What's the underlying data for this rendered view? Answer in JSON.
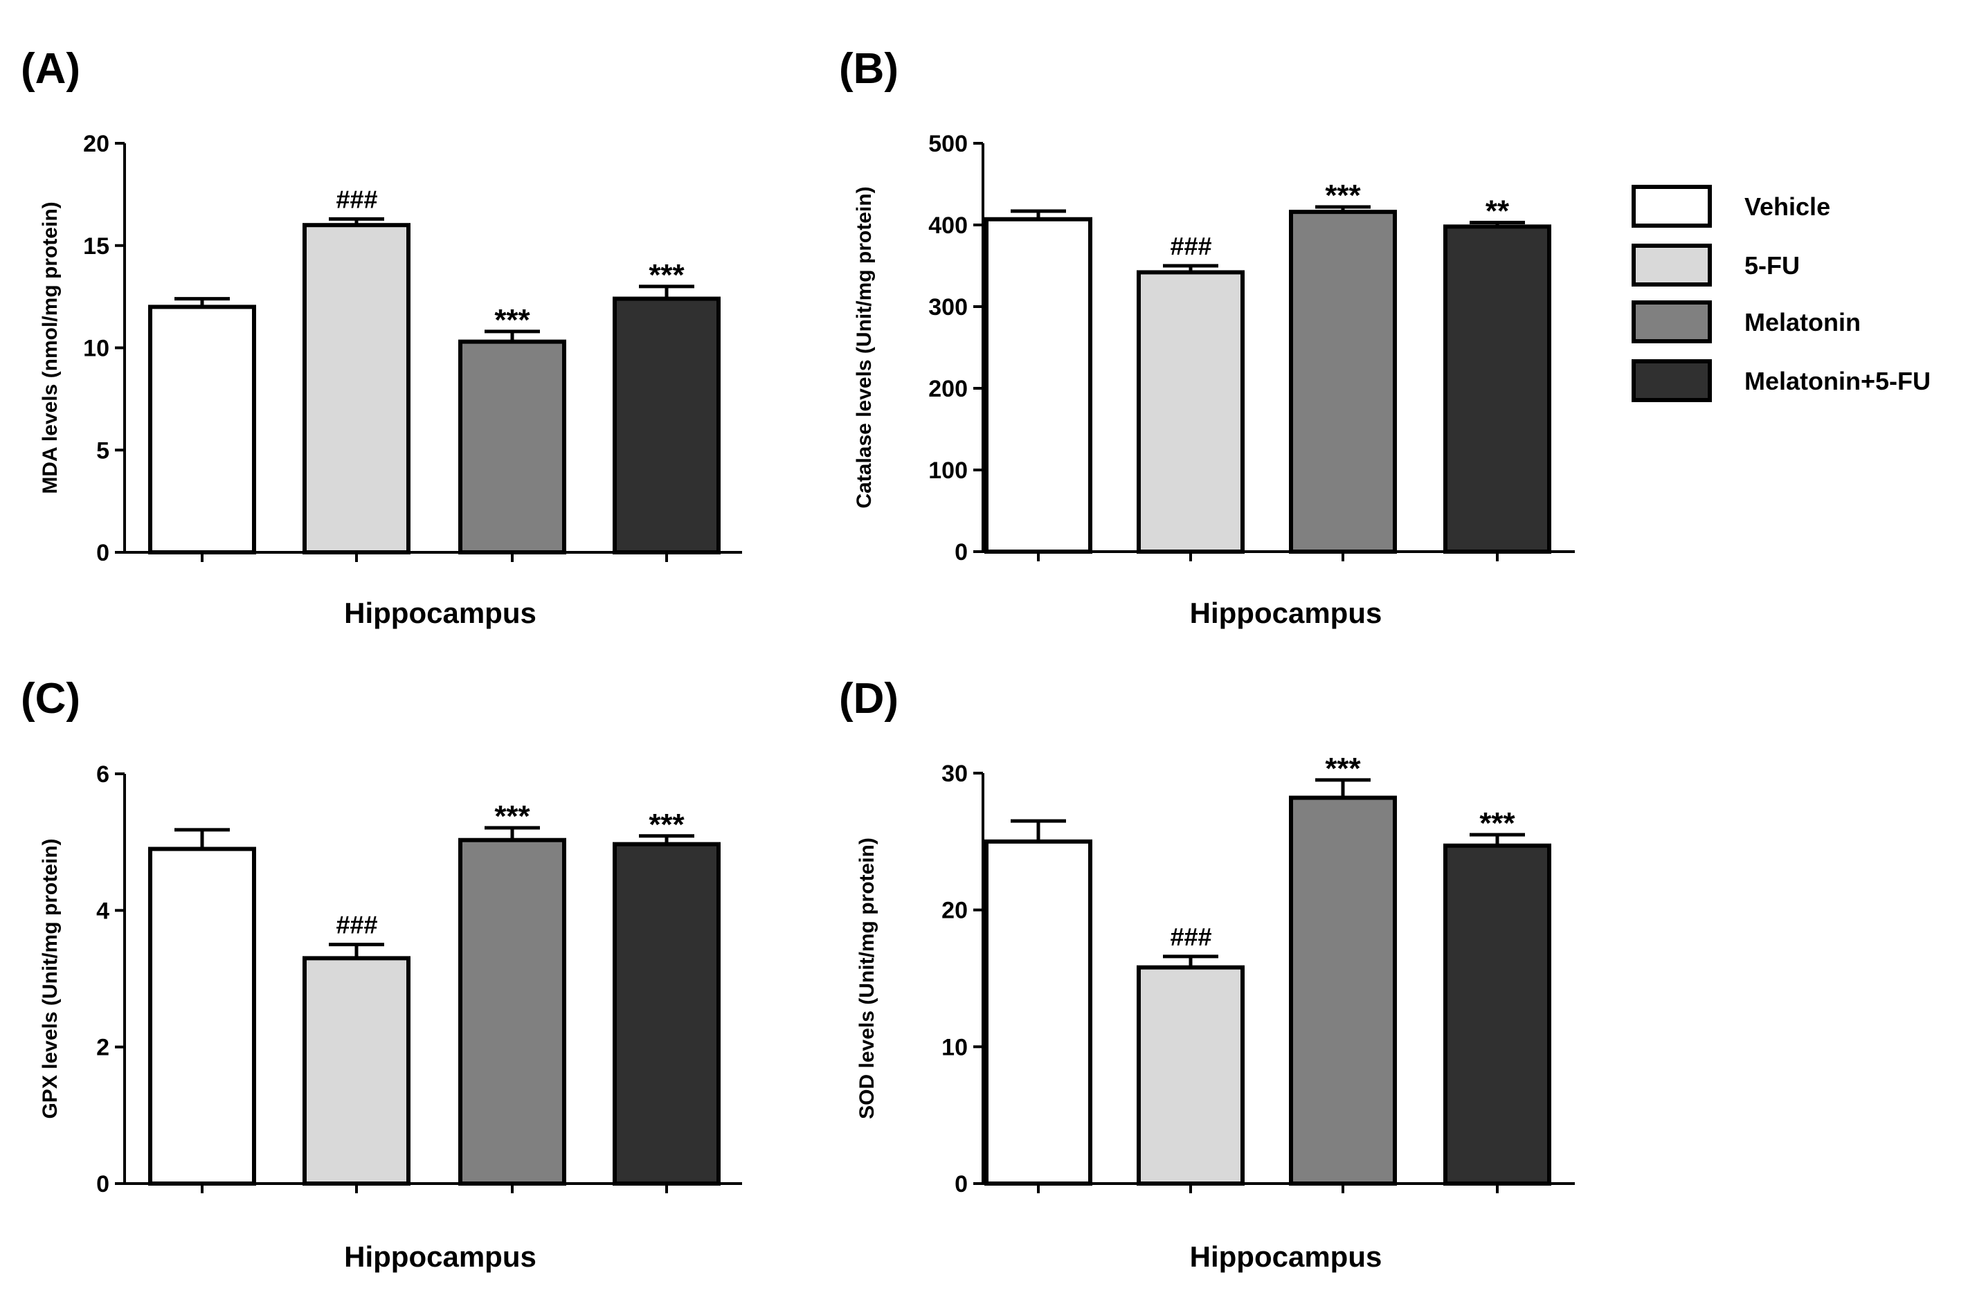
{
  "chart_data": [
    {
      "type": "bar",
      "panel": "(A)",
      "categories": [
        "Vehicle",
        "5-FU",
        "Melatonin",
        "Melatonin+5-FU"
      ],
      "values": [
        12.0,
        16.0,
        10.3,
        12.4
      ],
      "errors": [
        0.4,
        0.3,
        0.5,
        0.6
      ],
      "significance": [
        "",
        "###",
        "***",
        "***"
      ],
      "xlabel": "Hippocampus",
      "ylabel": "MDA levels (nmol/mg protein)",
      "ylim": [
        0,
        20
      ],
      "yticks": [
        "0",
        "5",
        "10",
        "15",
        "20"
      ]
    },
    {
      "type": "bar",
      "panel": "(B)",
      "categories": [
        "Vehicle",
        "5-FU",
        "Melatonin",
        "Melatonin+5-FU"
      ],
      "values": [
        407,
        342,
        416,
        398
      ],
      "errors": [
        10,
        8,
        6,
        5
      ],
      "significance": [
        "",
        "###",
        "***",
        "**"
      ],
      "xlabel": "Hippocampus",
      "ylabel": "Catalase levels (Unit/mg protein)",
      "ylim": [
        0,
        500
      ],
      "yticks": [
        "0",
        "100",
        "200",
        "300",
        "400",
        "500"
      ]
    },
    {
      "type": "bar",
      "panel": "(C)",
      "categories": [
        "Vehicle",
        "5-FU",
        "Melatonin",
        "Melatonin+5-FU"
      ],
      "values": [
        4.9,
        3.3,
        5.03,
        4.97
      ],
      "errors": [
        0.28,
        0.2,
        0.18,
        0.12
      ],
      "significance": [
        "",
        "###",
        "***",
        "***"
      ],
      "xlabel": "Hippocampus",
      "ylabel": "GPX levels (Unit/mg protein)",
      "ylim": [
        0,
        6
      ],
      "yticks": [
        "0",
        "2",
        "4",
        "6"
      ]
    },
    {
      "type": "bar",
      "panel": "(D)",
      "categories": [
        "Vehicle",
        "5-FU",
        "Melatonin",
        "Melatonin+5-FU"
      ],
      "values": [
        25.0,
        15.8,
        28.2,
        24.7
      ],
      "errors": [
        1.5,
        0.8,
        1.3,
        0.8
      ],
      "significance": [
        "",
        "###",
        "***",
        "***"
      ],
      "xlabel": "Hippocampus",
      "ylabel": "SOD levels (Unit/mg protein)",
      "ylim": [
        0,
        30
      ],
      "yticks": [
        "0",
        "10",
        "20",
        "30"
      ]
    }
  ],
  "legend": {
    "items": [
      {
        "label": "Vehicle",
        "color": "#ffffff"
      },
      {
        "label": "5-FU",
        "color": "#d9d9d9"
      },
      {
        "label": "Melatonin",
        "color": "#808080"
      },
      {
        "label": "Melatonin+5-FU",
        "color": "#303030"
      }
    ]
  },
  "colors": {
    "bar_fills": [
      "#ffffff",
      "#d9d9d9",
      "#808080",
      "#303030"
    ],
    "stroke": "#000000"
  }
}
